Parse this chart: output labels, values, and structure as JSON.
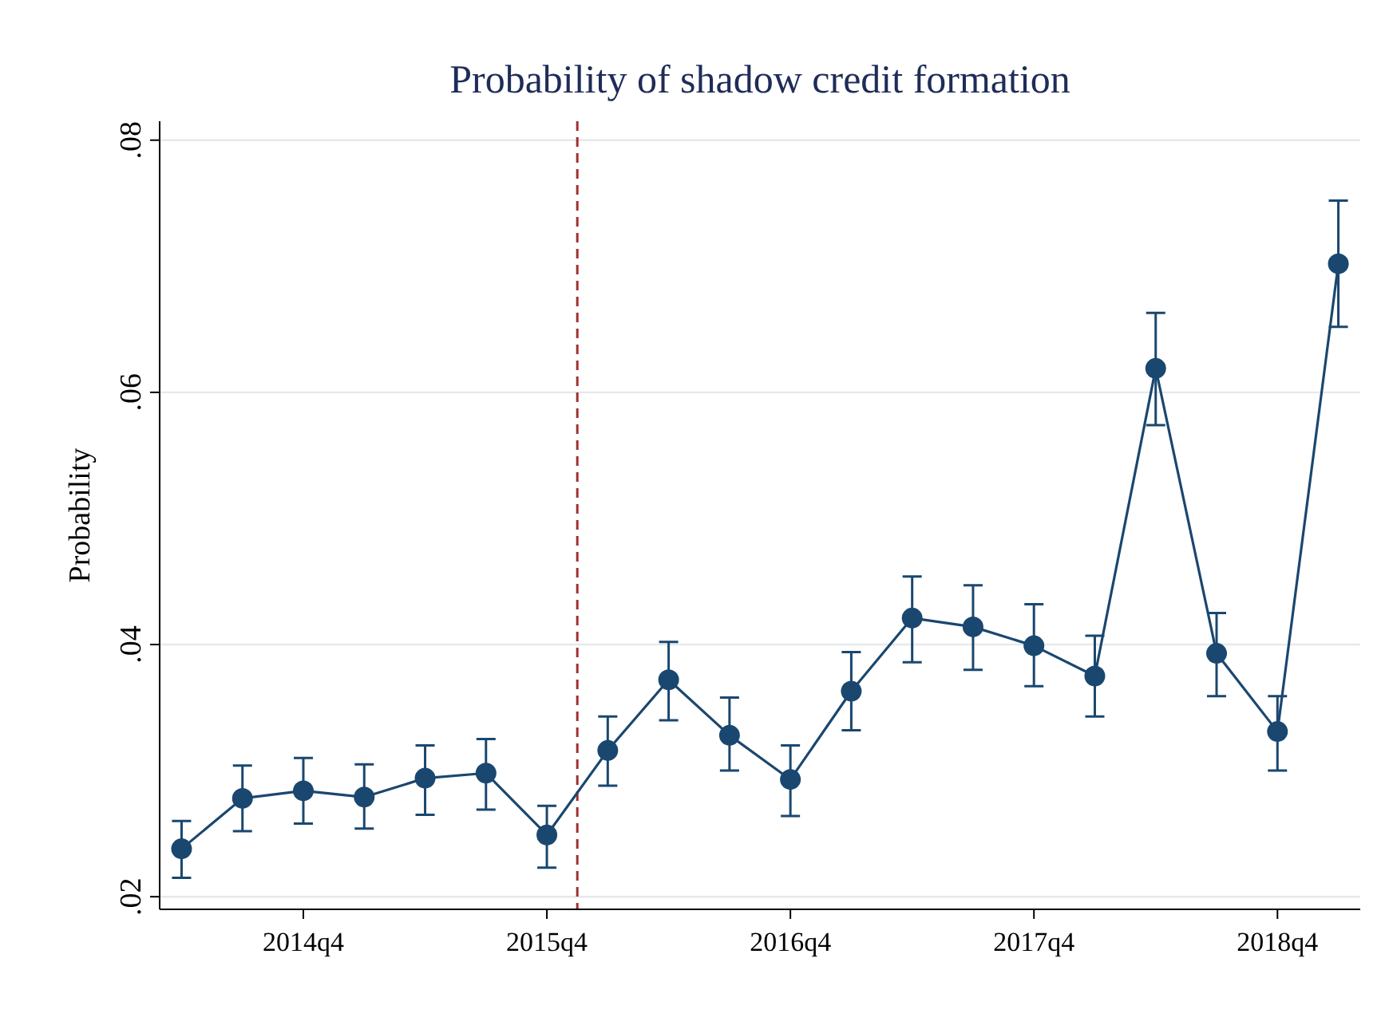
{
  "chart_data": {
    "type": "line",
    "title": "Probability of shadow credit formation",
    "ylabel": "Probability",
    "categories": [
      null,
      null,
      "2014q4",
      null,
      null,
      null,
      "2015q4",
      null,
      null,
      null,
      "2016q4",
      null,
      null,
      null,
      "2017q4",
      null,
      null,
      null,
      "2018q4",
      null
    ],
    "series": [
      {
        "color": "#1a476f",
        "values": [
          0.0238,
          0.0278,
          0.0284,
          0.0279,
          0.0294,
          0.0298,
          0.0249,
          0.0316,
          0.0372,
          0.0328,
          0.0293,
          0.0363,
          0.0421,
          0.0414,
          0.0399,
          0.0375,
          0.0619,
          0.0393,
          0.0331,
          0.0702
        ],
        "errors": [
          [
            0.0215,
            0.026
          ],
          [
            0.0252,
            0.0304
          ],
          [
            0.0258,
            0.031
          ],
          [
            0.0254,
            0.0305
          ],
          [
            0.0265,
            0.032
          ],
          [
            0.0269,
            0.0325
          ],
          [
            0.0223,
            0.0272
          ],
          [
            0.0288,
            0.0343
          ],
          [
            0.034,
            0.0402
          ],
          [
            0.03,
            0.0358
          ],
          [
            0.0264,
            0.032
          ],
          [
            0.0332,
            0.0394
          ],
          [
            0.0386,
            0.0454
          ],
          [
            0.038,
            0.0447
          ],
          [
            0.0367,
            0.0432
          ],
          [
            0.0343,
            0.0407
          ],
          [
            0.0574,
            0.0663
          ],
          [
            0.0359,
            0.0425
          ],
          [
            0.03,
            0.0359
          ],
          [
            0.0652,
            0.0752
          ]
        ]
      }
    ],
    "ylim": [
      0.019,
      0.0815
    ],
    "yticks": [
      {
        "value": 0.02,
        "label": ".02"
      },
      {
        "value": 0.04,
        "label": ".04"
      },
      {
        "value": 0.06,
        "label": ".06"
      },
      {
        "value": 0.08,
        "label": ".08"
      }
    ],
    "grid": "y",
    "marker": "circle",
    "line_style": "solid"
  }
}
